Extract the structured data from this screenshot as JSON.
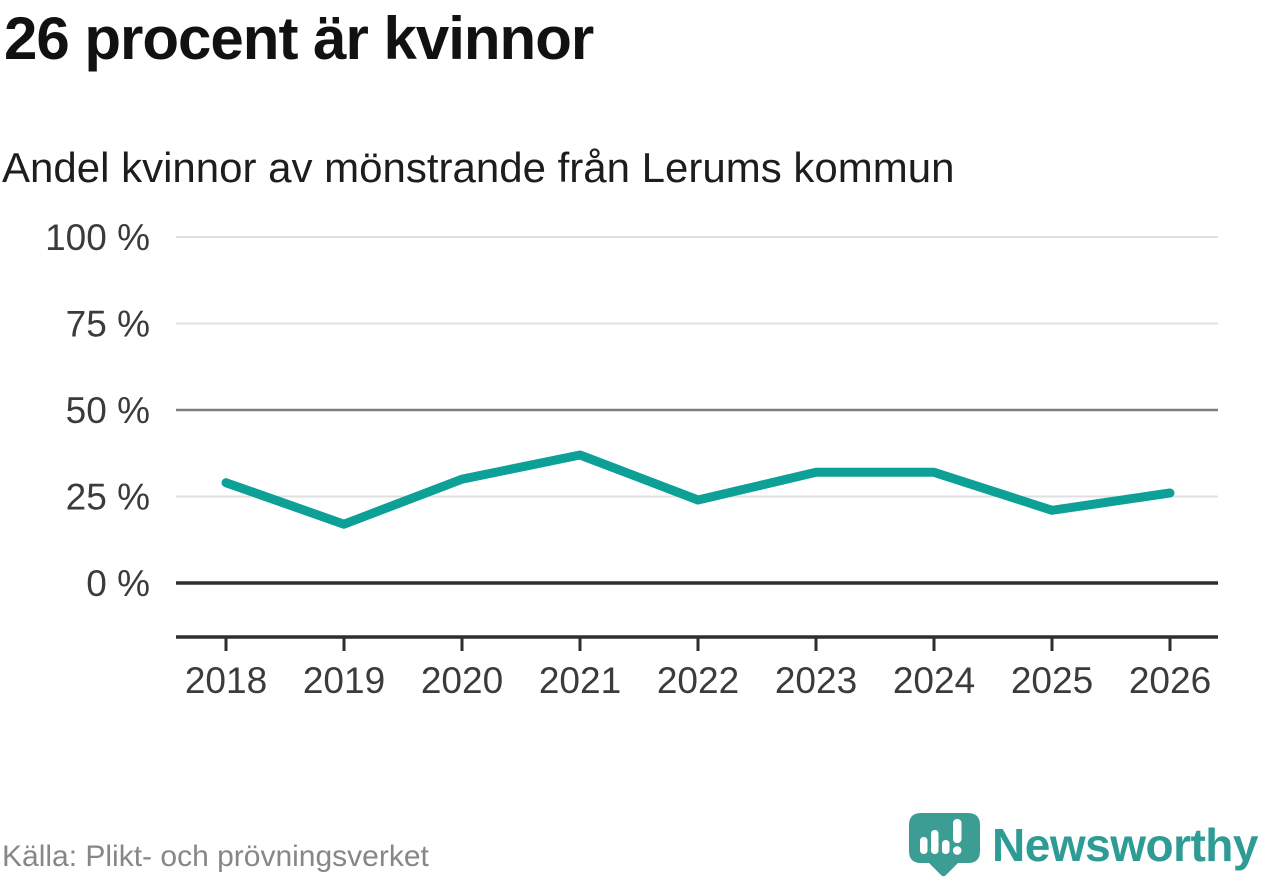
{
  "header": {
    "title": "26 procent är kvinnor",
    "subtitle": "Andel kvinnor av mönstrande från Lerums kommun"
  },
  "chart_data": {
    "type": "line",
    "title": "26 procent är kvinnor",
    "subtitle": "Andel kvinnor av mönstrande från Lerums kommun",
    "x": [
      2018,
      2019,
      2020,
      2021,
      2022,
      2023,
      2024,
      2025,
      2026
    ],
    "xticklabels": [
      "2018",
      "2019",
      "2020",
      "2021",
      "2022",
      "2023",
      "2024",
      "2025",
      "2026"
    ],
    "series": [
      {
        "name": "Andel kvinnor av mönstrande",
        "values": [
          29,
          17,
          30,
          37,
          24,
          32,
          32,
          21,
          26
        ]
      }
    ],
    "ylim": [
      0,
      100
    ],
    "yticks": [
      {
        "value": 100,
        "label": "100 %"
      },
      {
        "value": 75,
        "label": "75 %"
      },
      {
        "value": 50,
        "label": "50 %"
      },
      {
        "value": 25,
        "label": "25 %"
      },
      {
        "value": 0,
        "label": "0 %"
      }
    ],
    "grid": true,
    "legend": "none"
  },
  "colors": {
    "line_teal": "#0DA096",
    "brand_teal": "#2E9C94",
    "logo_mark_teal": "#3C9D95",
    "grid_light": "#E0E0E0",
    "grid_mid": "#7D7D7D",
    "axis_dark": "#2E2E2E",
    "tick_text": "#3B3B3B"
  },
  "footer": {
    "source": "Källa: Plikt- och prövningsverket",
    "brand": "Newsworthy"
  }
}
